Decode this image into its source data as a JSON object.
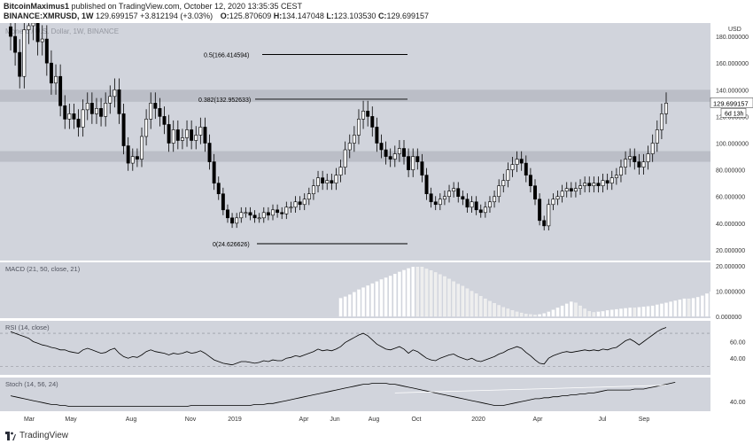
{
  "header": {
    "author": "BitcoinMaximus1",
    "published": "published on TradingView.com, October 12, 2020 13:35:35 CEST",
    "symbol": "BINANCE:XMRUSD, 1W",
    "last": "129.699157",
    "change": "+3.812194 (+3.03%)",
    "open_label": "O:",
    "open": "125.870609",
    "high_label": "H:",
    "high": "134.147048",
    "low_label": "L:",
    "low": "123.103530",
    "close_label": "C:",
    "close": "129.699157"
  },
  "watermark": "Monero / U.S. Dollar, 1W, BINANCE",
  "price_axis_unit": "USD",
  "last_price_tag": "129.699157",
  "countdown_tag": "6d 13h",
  "fib_labels": [
    "0.5(166.414594)",
    "0.382(132.952633)",
    "0(24.626626)"
  ],
  "indicator_labels": {
    "macd": "MACD (21, 50, close, 21)",
    "rsi": "RSI (14, close)",
    "stoch": "Stoch (14, 56, 24)"
  },
  "footer": {
    "brand": "TradingView"
  },
  "colors": {
    "panel_bg": "#d1d4dc",
    "zone": "#b8bbc4",
    "bull": "#ffffff",
    "bear": "#000000"
  },
  "chart_data": {
    "type": "candlestick",
    "title": "",
    "price_axis": {
      "ticks": [
        20,
        40,
        60,
        80,
        100,
        120,
        140,
        160,
        180
      ],
      "tick_labels": [
        "20.000000",
        "40.000000",
        "60.000000",
        "80.000000",
        "100.000000",
        "120.000000",
        "140.000000",
        "160.000000",
        "180.000000"
      ],
      "range": [
        12,
        190
      ]
    },
    "time_axis_labels": [
      "Mar",
      "May",
      "Aug",
      "Nov",
      "2019",
      "Apr",
      "Jun",
      "Aug",
      "Oct",
      "2020",
      "Apr",
      "Jul",
      "Sep"
    ],
    "resistance_zones": [
      [
        131,
        140
      ],
      [
        86,
        94
      ]
    ],
    "fib_levels": [
      {
        "ratio": 0.5,
        "value": 166.414594
      },
      {
        "ratio": 0.382,
        "value": 132.952633
      },
      {
        "ratio": 0,
        "value": 24.626626
      }
    ],
    "close_series": [
      180,
      168,
      150,
      185,
      188,
      190,
      176,
      178,
      160,
      145,
      150,
      128,
      118,
      122,
      118,
      112,
      125,
      130,
      122,
      126,
      120,
      130,
      135,
      140,
      122,
      98,
      85,
      90,
      88,
      105,
      118,
      130,
      126,
      120,
      114,
      100,
      110,
      102,
      104,
      110,
      102,
      106,
      112,
      100,
      86,
      70,
      62,
      50,
      44,
      40,
      44,
      48,
      48,
      46,
      44,
      44,
      48,
      46,
      50,
      48,
      47,
      52,
      52,
      56,
      54,
      58,
      62,
      68,
      74,
      70,
      72,
      70,
      76,
      82,
      95,
      100,
      106,
      118,
      124,
      120,
      112,
      100,
      95,
      90,
      88,
      92,
      96,
      90,
      80,
      90,
      86,
      76,
      62,
      56,
      54,
      58,
      60,
      64,
      66,
      60,
      58,
      52,
      56,
      50,
      48,
      52,
      56,
      60,
      68,
      72,
      80,
      84,
      88,
      85,
      76,
      68,
      58,
      42,
      38,
      54,
      58,
      60,
      64,
      66,
      64,
      66,
      68,
      70,
      68,
      70,
      68,
      72,
      70,
      74,
      76,
      82,
      88,
      90,
      86,
      82,
      86,
      92,
      100,
      110,
      122,
      130
    ],
    "macd_histogram": [
      0,
      0,
      0,
      0,
      0,
      0,
      0,
      0,
      0,
      0,
      0,
      0,
      0,
      0,
      0,
      0,
      0,
      0,
      0,
      0,
      0,
      0,
      0,
      0,
      0,
      0,
      0,
      0,
      0,
      0,
      0,
      0,
      0,
      0,
      0,
      0,
      0,
      0,
      0,
      0,
      0,
      0,
      0,
      0,
      0,
      0,
      0,
      0,
      0,
      0,
      0,
      0,
      0,
      0,
      0,
      0,
      0,
      0,
      0,
      0,
      0,
      0,
      0,
      0,
      0,
      0,
      0,
      0,
      0,
      0,
      0,
      0,
      0,
      7.2,
      7.8,
      8.6,
      9.6,
      10.6,
      11.4,
      12.2,
      13.0,
      13.8,
      14.6,
      15.3,
      16.0,
      16.8,
      17.6,
      18.3,
      19.0,
      19.6,
      19.6,
      19.6,
      18.8,
      18.2,
      17.4,
      16.6,
      15.8,
      14.8,
      13.8,
      12.8,
      12.0,
      11.0,
      10.0,
      9.0,
      8.0,
      7.0,
      6.0,
      5.2,
      4.4,
      3.6,
      3.0,
      2.4,
      1.8,
      1.4,
      1.0,
      0.8,
      0.6,
      0.8,
      1.2,
      1.8,
      2.6,
      3.4,
      4.2,
      5.0,
      5.8,
      5.4,
      4.2,
      3.0,
      2.0,
      1.6,
      1.8,
      2.0,
      2.4,
      2.6,
      2.8,
      3.0,
      3.2,
      3.4,
      3.4,
      3.6,
      3.8,
      4.0,
      4.2,
      4.6,
      5.0,
      5.4,
      5.8,
      6.2,
      6.6,
      7.0,
      7.0,
      7.2,
      7.6,
      8.2,
      9.0,
      9.8
    ],
    "rsi": [
      72,
      70,
      68,
      66,
      64,
      60,
      58,
      56,
      55,
      53,
      52,
      50,
      50,
      48,
      47,
      46,
      50,
      52,
      50,
      48,
      46,
      47,
      50,
      52,
      46,
      42,
      40,
      42,
      41,
      44,
      48,
      50,
      48,
      47,
      46,
      44,
      46,
      45,
      46,
      48,
      46,
      47,
      49,
      46,
      42,
      38,
      36,
      34,
      33,
      32,
      34,
      36,
      36,
      35,
      34,
      35,
      37,
      36,
      38,
      37,
      37,
      40,
      41,
      43,
      42,
      44,
      46,
      48,
      51,
      49,
      50,
      49,
      51,
      54,
      59,
      62,
      65,
      68,
      70,
      67,
      62,
      57,
      54,
      51,
      50,
      52,
      54,
      51,
      46,
      50,
      48,
      44,
      40,
      38,
      37,
      40,
      42,
      44,
      45,
      42,
      40,
      38,
      40,
      37,
      36,
      38,
      40,
      42,
      45,
      47,
      50,
      52,
      54,
      52,
      47,
      43,
      38,
      34,
      33,
      40,
      43,
      45,
      47,
      48,
      47,
      48,
      49,
      50,
      49,
      50,
      49,
      51,
      50,
      52,
      53,
      57,
      61,
      63,
      60,
      56,
      60,
      64,
      68,
      72,
      75,
      77
    ],
    "stoch": [
      46,
      45,
      44,
      43,
      42,
      41,
      40,
      39,
      38,
      37,
      37,
      36,
      36,
      35,
      35,
      35,
      35,
      35,
      35,
      35,
      35,
      35,
      35,
      35,
      35,
      35,
      35,
      35,
      35,
      35,
      35,
      35,
      35,
      35,
      35,
      35,
      35,
      35,
      35,
      35,
      36,
      36,
      36,
      36,
      36,
      36,
      36,
      36,
      36,
      36,
      36,
      36,
      36,
      36,
      37,
      37,
      37,
      38,
      38,
      39,
      40,
      41,
      42,
      43,
      44,
      45,
      46,
      47,
      48,
      49,
      50,
      51,
      52,
      53,
      54,
      55,
      56,
      57,
      58,
      58,
      59,
      59,
      59,
      59,
      58,
      58,
      57,
      56,
      55,
      54,
      53,
      52,
      51,
      50,
      49,
      48,
      47,
      46,
      45,
      44,
      43,
      42,
      41,
      40,
      39,
      38,
      37,
      36,
      36,
      36,
      37,
      38,
      39,
      40,
      41,
      42,
      43,
      43,
      44,
      44,
      45,
      45,
      46,
      46,
      47,
      47,
      48,
      48,
      49,
      49,
      50,
      51,
      52,
      52,
      52,
      52,
      52,
      52,
      53,
      53,
      53,
      54,
      55,
      56,
      57,
      58,
      59,
      60
    ],
    "rsi_axis": [
      40,
      60
    ],
    "macd_axis": [
      0,
      10,
      20
    ],
    "stoch_axis": [
      40
    ]
  }
}
